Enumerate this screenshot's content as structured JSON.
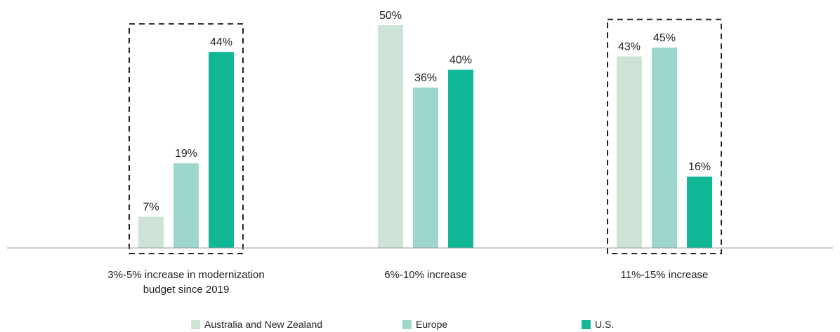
{
  "chart_data": {
    "type": "bar",
    "categories": [
      "3%-5% increase in modernization budget since 2019",
      "6%-10% increase",
      "11%-15% increase"
    ],
    "series": [
      {
        "name": "Australia and New Zealand",
        "color": "#cde3d6",
        "values": [
          7,
          50,
          43
        ],
        "value_labels": [
          "7%",
          "50%",
          "43%"
        ]
      },
      {
        "name": "Europe",
        "color": "#9dd7cb",
        "values": [
          19,
          36,
          45
        ],
        "value_labels": [
          "19%",
          "36%",
          "45%"
        ]
      },
      {
        "name": "U.S.",
        "color": "#12b795",
        "values": [
          44,
          40,
          16
        ],
        "value_labels": [
          "44%",
          "40%",
          "16%"
        ]
      }
    ],
    "ylim": [
      0,
      50
    ],
    "highlighted_categories": [
      0,
      2
    ],
    "legend": "bottom"
  }
}
